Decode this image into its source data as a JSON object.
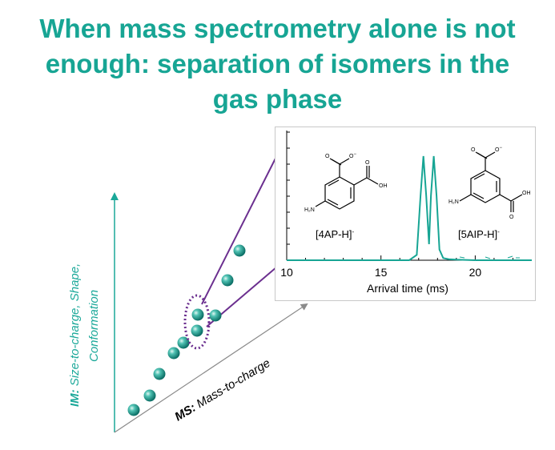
{
  "title": "When mass spectrometry alone is not enough: separation of isomers in the gas phase",
  "axes": {
    "im_prefix": "IM:",
    "im_line1": " Size-to-charge, Shape,",
    "im_line2": "Conformation",
    "ms_prefix": "MS:",
    "ms_text": " Mass-to-charge"
  },
  "inset": {
    "x_axis_label": "Arrival time (ms)",
    "x_ticks": [
      "10",
      "15",
      "20"
    ],
    "species": [
      {
        "label": "[4AP-H]",
        "charge": "-"
      },
      {
        "label": "[5AIP-H]",
        "charge": "-"
      }
    ],
    "atoms": {
      "o_minus": "O",
      "minus": "−",
      "oh": "OH",
      "h2n": "H₂N"
    }
  },
  "chart_data": {
    "type": "line",
    "xlabel": "Arrival time (ms)",
    "xlim": [
      10,
      23
    ],
    "x_ticks": [
      10,
      15,
      20
    ],
    "series": [
      {
        "x": [
          10,
          15,
          16.5,
          16.9,
          17.1,
          17.25,
          17.4,
          17.55,
          17.65,
          17.8,
          17.95,
          18.1,
          18.3,
          18.6,
          19,
          20,
          23
        ],
        "y": [
          0,
          0,
          0,
          0.05,
          0.6,
          0.97,
          0.6,
          0.15,
          0.6,
          0.97,
          0.6,
          0.1,
          0.02,
          0.01,
          0.005,
          0,
          0
        ]
      }
    ]
  },
  "colors": {
    "title": "#17a594",
    "axis_teal": "#1aa899",
    "arrow_purple": "#6b2f8f",
    "dot_dark": "#0b7a70",
    "dot_light": "#e3f7f3"
  }
}
